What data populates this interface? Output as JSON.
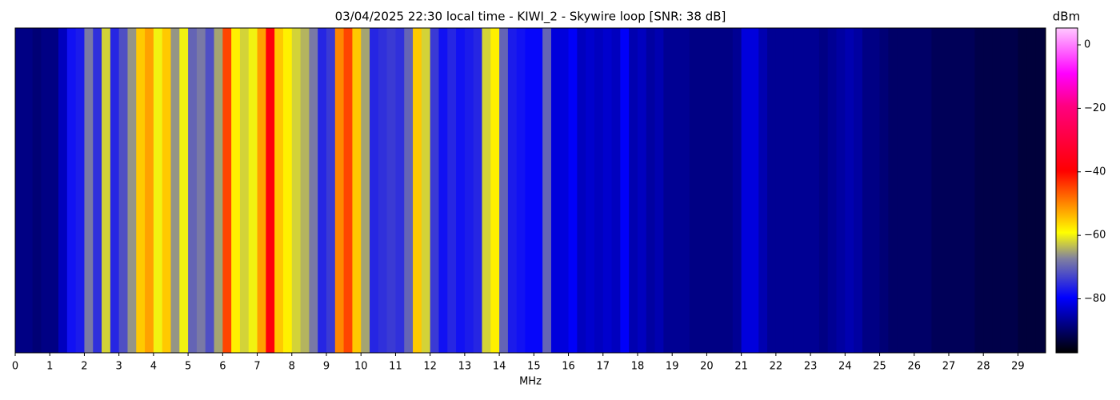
{
  "chart_data": {
    "type": "heatmap",
    "title": "03/04/2025 22:30 local time - KIWI_2 - Skywire loop [SNR: 38 dB]",
    "xlabel": "MHz",
    "x": [
      0.125,
      0.375,
      0.625,
      0.875,
      1.125,
      1.375,
      1.625,
      1.875,
      2.125,
      2.375,
      2.625,
      2.875,
      3.125,
      3.375,
      3.625,
      3.875,
      4.125,
      4.375,
      4.625,
      4.875,
      5.125,
      5.375,
      5.625,
      5.875,
      6.125,
      6.375,
      6.625,
      6.875,
      7.125,
      7.375,
      7.625,
      7.875,
      8.125,
      8.375,
      8.625,
      8.875,
      9.125,
      9.375,
      9.625,
      9.875,
      10.125,
      10.375,
      10.625,
      10.875,
      11.125,
      11.375,
      11.625,
      11.875,
      12.125,
      12.375,
      12.625,
      12.875,
      13.125,
      13.375,
      13.625,
      13.875,
      14.125,
      14.375,
      14.625,
      14.875,
      15.125,
      15.375,
      15.625,
      15.875,
      16.125,
      16.375,
      16.625,
      16.875,
      17.125,
      17.375,
      17.625,
      17.875,
      18.125,
      18.375,
      18.625,
      18.875,
      19.125,
      19.375,
      19.625,
      19.875,
      20.125,
      20.375,
      20.625,
      20.875,
      21.125,
      21.375,
      21.625,
      21.875,
      22.125,
      22.375,
      22.625,
      22.875,
      23.125,
      23.375,
      23.625,
      23.875,
      24.125,
      24.375,
      24.625,
      24.875,
      25.125,
      25.375,
      25.625,
      25.875,
      26.125,
      26.375,
      26.625,
      26.875,
      27.125,
      27.375,
      27.625,
      27.875,
      28.125,
      28.375,
      28.625,
      28.875,
      29.125,
      29.375,
      29.625,
      29.875
    ],
    "values": [
      -88,
      -88,
      -89,
      -88,
      -88,
      -84,
      -78,
      -77,
      -68,
      -75,
      -62,
      -76,
      -72,
      -66,
      -55,
      -52,
      -60,
      -55,
      -66,
      -60,
      -70,
      -68,
      -72,
      -65,
      -45,
      -58,
      -62,
      -60,
      -52,
      -38,
      -55,
      -58,
      -62,
      -64,
      -68,
      -76,
      -74,
      -50,
      -45,
      -55,
      -65,
      -76,
      -75,
      -74,
      -75,
      -70,
      -55,
      -62,
      -74,
      -78,
      -76,
      -78,
      -77,
      -76,
      -62,
      -58,
      -70,
      -77,
      -78,
      -79,
      -79,
      -70,
      -82,
      -82,
      -80,
      -84,
      -83,
      -84,
      -83,
      -84,
      -80,
      -85,
      -84,
      -86,
      -85,
      -87,
      -87,
      -87,
      -88,
      -88,
      -88,
      -88,
      -88,
      -87,
      -82,
      -82,
      -85,
      -87,
      -87,
      -87,
      -87,
      -87,
      -87,
      -88,
      -87,
      -86,
      -85,
      -86,
      -88,
      -88,
      -89,
      -90,
      -90,
      -90,
      -90,
      -90,
      -91,
      -91,
      -91,
      -91,
      -91,
      -92,
      -92,
      -92,
      -92,
      -92,
      -93,
      -93,
      -93,
      -93
    ],
    "xlim": [
      0,
      29.8
    ],
    "xticks": [
      0,
      1,
      2,
      3,
      4,
      5,
      6,
      7,
      8,
      9,
      10,
      11,
      12,
      13,
      14,
      15,
      16,
      17,
      18,
      19,
      20,
      21,
      22,
      23,
      24,
      25,
      26,
      27,
      28,
      29
    ],
    "colorbar": {
      "label": "dBm",
      "lim": [
        -97,
        5.3
      ],
      "ticks": [
        {
          "value": -80,
          "label": "−80"
        },
        {
          "value": -60,
          "label": "−60"
        },
        {
          "value": -40,
          "label": "−40"
        },
        {
          "value": -20,
          "label": "−20"
        },
        0
      ]
    }
  }
}
